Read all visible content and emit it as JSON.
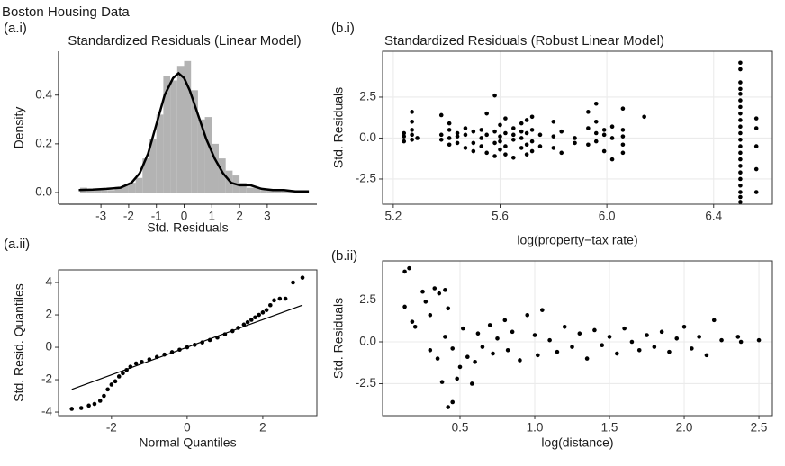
{
  "title": "Boston Housing Data",
  "chart_data": [
    {
      "type": "histogram",
      "panel_label": "(a.i)",
      "title": "Standardized Residuals (Linear Model)",
      "xlabel": "Std. Residuals",
      "ylabel": "Density",
      "color": "#b3b3b3",
      "grid": false,
      "bins": [
        -3.75,
        -3.5,
        -3.25,
        -3.0,
        -2.75,
        -2.5,
        -2.25,
        -2.0,
        -1.75,
        -1.5,
        -1.25,
        -1.0,
        -0.75,
        -0.5,
        -0.25,
        0,
        0.25,
        0.5,
        0.75,
        1.0,
        1.25,
        1.5,
        1.75,
        2.0,
        2.25,
        2.5,
        2.75,
        3.0,
        3.25,
        3.5,
        3.75,
        4.0
      ],
      "values": [
        0.02,
        0.01,
        0.01,
        0.01,
        0.01,
        0.02,
        0.03,
        0.04,
        0.06,
        0.14,
        0.22,
        0.32,
        0.48,
        0.46,
        0.52,
        0.54,
        0.42,
        0.3,
        0.31,
        0.2,
        0.14,
        0.09,
        0.07,
        0.04,
        0.02,
        0.02,
        0.01,
        0.01,
        0.01,
        0.01,
        0.01
      ],
      "curve": {
        "x": [
          -3.8,
          -3.3,
          -2.8,
          -2.3,
          -1.9,
          -1.6,
          -1.3,
          -1.0,
          -0.7,
          -0.4,
          -0.2,
          0,
          0.2,
          0.5,
          0.8,
          1.1,
          1.4,
          1.7,
          2.0,
          2.4,
          2.8,
          3.2,
          3.6,
          4.0,
          4.5
        ],
        "y": [
          0.01,
          0.012,
          0.015,
          0.02,
          0.04,
          0.08,
          0.16,
          0.28,
          0.4,
          0.47,
          0.49,
          0.47,
          0.42,
          0.32,
          0.22,
          0.14,
          0.08,
          0.04,
          0.03,
          0.03,
          0.015,
          0.01,
          0.01,
          0.005,
          0.005
        ]
      },
      "xlim": [
        -4.53,
        4.79
      ],
      "ylim": [
        -0.048,
        0.58
      ],
      "xticks": [
        -3,
        -2,
        -1,
        0,
        1,
        2,
        3
      ],
      "yticks": [
        {
          "value": 0,
          "label": "0.0"
        },
        0.2,
        0.4
      ]
    },
    {
      "type": "scatter",
      "panel_label": "(b.i)",
      "title": "Standardized Residuals (Robust Linear Model)",
      "xlabel": "log(property−tax rate)",
      "ylabel": "Std. Residuals",
      "color": "#000000",
      "grid": true,
      "x": [
        5.24,
        5.24,
        5.24,
        5.27,
        5.27,
        5.27,
        5.27,
        5.27,
        5.29,
        5.38,
        5.38,
        5.38,
        5.41,
        5.41,
        5.41,
        5.41,
        5.44,
        5.44,
        5.44,
        5.47,
        5.47,
        5.47,
        5.5,
        5.5,
        5.5,
        5.53,
        5.53,
        5.53,
        5.55,
        5.55,
        5.55,
        5.58,
        5.58,
        5.58,
        5.58,
        5.6,
        5.6,
        5.6,
        5.6,
        5.62,
        5.62,
        5.62,
        5.62,
        5.65,
        5.65,
        5.65,
        5.65,
        5.68,
        5.68,
        5.68,
        5.68,
        5.7,
        5.7,
        5.7,
        5.7,
        5.72,
        5.72,
        5.72,
        5.72,
        5.75,
        5.75,
        5.8,
        5.8,
        5.8,
        5.83,
        5.83,
        5.88,
        5.88,
        5.93,
        5.93,
        5.93,
        5.96,
        5.96,
        5.96,
        5.96,
        5.99,
        5.99,
        5.99,
        6.02,
        6.02,
        6.02,
        6.06,
        6.06,
        6.06,
        6.06,
        6.06,
        6.14,
        6.5,
        6.5,
        6.5,
        6.5,
        6.5,
        6.5,
        6.5,
        6.5,
        6.5,
        6.5,
        6.5,
        6.5,
        6.5,
        6.5,
        6.5,
        6.5,
        6.5,
        6.5,
        6.5,
        6.5,
        6.5,
        6.5,
        6.56,
        6.56,
        6.56,
        6.56,
        6.56
      ],
      "y": [
        0.3,
        -0.2,
        0.1,
        1.6,
        1.0,
        0.5,
        -0.1,
        0.2,
        0.0,
        1.4,
        0.2,
        -0.1,
        0.5,
        0.0,
        -0.4,
        0.9,
        -0.3,
        0.3,
        0.1,
        0.6,
        -0.6,
        0.2,
        -0.3,
        0.4,
        -0.8,
        0.0,
        0.5,
        -0.5,
        1.5,
        0.2,
        -0.9,
        0.4,
        -0.3,
        2.6,
        -1.1,
        0.8,
        -0.2,
        0.1,
        -0.7,
        1.2,
        0.3,
        -0.5,
        -1.0,
        0.6,
        -0.1,
        0.2,
        -1.2,
        0.9,
        0.0,
        -0.6,
        0.4,
        1.1,
        -0.4,
        0.3,
        -1.0,
        1.3,
        0.5,
        -0.2,
        -0.8,
        0.2,
        -0.5,
        1.0,
        0.1,
        -0.6,
        0.4,
        -0.9,
        0.0,
        -0.3,
        1.6,
        0.6,
        -0.4,
        2.1,
        1.0,
        0.3,
        -0.2,
        0.2,
        -0.8,
        0.5,
        0.0,
        -1.3,
        0.7,
        1.8,
        0.5,
        -0.4,
        -0.9,
        0.1,
        1.3,
        4.6,
        4.2,
        3.4,
        3.0,
        2.7,
        2.3,
        1.9,
        1.5,
        1.1,
        0.7,
        0.3,
        -0.1,
        -0.5,
        -0.9,
        -1.3,
        -1.7,
        -2.1,
        -2.5,
        -2.9,
        -3.3,
        -3.6,
        -3.9,
        1.2,
        0.6,
        -0.5,
        -1.9,
        -3.3
      ],
      "xlim": [
        5.16,
        6.62
      ],
      "ylim": [
        -4.04,
        5.3
      ],
      "xticks": [
        5.2,
        5.6,
        {
          "value": 6,
          "label": "6.0"
        },
        6.4
      ],
      "yticks": [
        -2.5,
        {
          "value": 0,
          "label": "0.0"
        },
        2.5
      ]
    },
    {
      "type": "qq",
      "panel_label": "(a.ii)",
      "xlabel": "Normal Quantiles",
      "ylabel": "Std. Resid. Quantiles",
      "color": "#000000",
      "grid": false,
      "x": [
        -3.05,
        -2.8,
        -2.6,
        -2.45,
        -2.3,
        -2.2,
        -2.1,
        -2.0,
        -1.9,
        -1.8,
        -1.7,
        -1.6,
        -1.5,
        -1.35,
        -1.2,
        -1.0,
        -0.8,
        -0.6,
        -0.4,
        -0.2,
        0,
        0.2,
        0.4,
        0.6,
        0.8,
        1.0,
        1.2,
        1.35,
        1.5,
        1.6,
        1.7,
        1.8,
        1.9,
        2.0,
        2.1,
        2.2,
        2.3,
        2.45,
        2.6,
        2.8,
        3.05
      ],
      "y": [
        -3.8,
        -3.75,
        -3.6,
        -3.5,
        -3.3,
        -3.0,
        -2.6,
        -2.3,
        -2.1,
        -1.8,
        -1.6,
        -1.4,
        -1.2,
        -1.0,
        -0.9,
        -0.75,
        -0.6,
        -0.45,
        -0.3,
        -0.15,
        0.0,
        0.15,
        0.3,
        0.45,
        0.6,
        0.8,
        1.0,
        1.2,
        1.4,
        1.55,
        1.7,
        1.85,
        2.0,
        2.15,
        2.3,
        2.6,
        2.9,
        3.0,
        3.0,
        4.0,
        4.3
      ],
      "reference_line": {
        "x": [
          -3.05,
          3.05
        ],
        "y": [
          -2.6,
          2.6
        ]
      },
      "xlim": [
        -3.4,
        3.43
      ],
      "ylim": [
        -4.22,
        4.78
      ],
      "xticks": [
        -2,
        0,
        2
      ],
      "yticks": [
        -4,
        -2,
        0,
        2,
        4
      ]
    },
    {
      "type": "scatter",
      "panel_label": "(b.ii)",
      "xlabel": "log(distance)",
      "ylabel": "Std. Residuals",
      "color": "#000000",
      "grid": true,
      "x": [
        0.13,
        0.16,
        0.13,
        0.18,
        0.2,
        0.25,
        0.27,
        0.3,
        0.33,
        0.36,
        0.4,
        0.42,
        0.3,
        0.35,
        0.38,
        0.42,
        0.45,
        0.48,
        0.5,
        0.4,
        0.45,
        0.52,
        0.55,
        0.58,
        0.6,
        0.62,
        0.65,
        0.7,
        0.72,
        0.75,
        0.8,
        0.82,
        0.85,
        0.9,
        0.95,
        1.0,
        1.02,
        1.05,
        1.1,
        1.15,
        1.2,
        1.25,
        1.3,
        1.35,
        1.4,
        1.45,
        1.5,
        1.55,
        1.6,
        1.65,
        1.7,
        1.75,
        1.8,
        1.85,
        1.9,
        1.95,
        2.0,
        2.05,
        2.1,
        2.15,
        2.2,
        2.25,
        2.36,
        2.38,
        2.5
      ],
      "y": [
        4.2,
        4.4,
        2.1,
        1.2,
        0.9,
        3.0,
        2.4,
        1.6,
        3.2,
        2.9,
        3.1,
        2.0,
        -0.5,
        -1.0,
        -2.4,
        -3.9,
        -3.6,
        -2.2,
        -1.5,
        0.3,
        -0.4,
        0.8,
        -0.9,
        -2.5,
        -1.2,
        0.5,
        -0.3,
        1.0,
        -0.7,
        0.2,
        1.3,
        -0.5,
        0.6,
        -1.1,
        1.6,
        0.4,
        -0.8,
        1.9,
        0.1,
        -0.6,
        0.9,
        -0.3,
        0.5,
        -1.0,
        0.7,
        -0.2,
        0.3,
        -0.7,
        0.8,
        0.0,
        -0.5,
        0.4,
        -0.3,
        0.6,
        -0.6,
        0.2,
        0.9,
        -0.4,
        0.3,
        -0.8,
        1.3,
        0.1,
        0.3,
        0.0,
        0.1
      ],
      "xlim": [
        -0.018,
        2.59
      ],
      "ylim": [
        -4.41,
        4.84
      ],
      "xticks": [
        0.5,
        {
          "value": 1,
          "label": "1.0"
        },
        1.5,
        {
          "value": 2,
          "label": "2.0"
        },
        2.5
      ],
      "yticks": [
        -2.5,
        {
          "value": 0,
          "label": "0.0"
        },
        2.5
      ]
    }
  ]
}
